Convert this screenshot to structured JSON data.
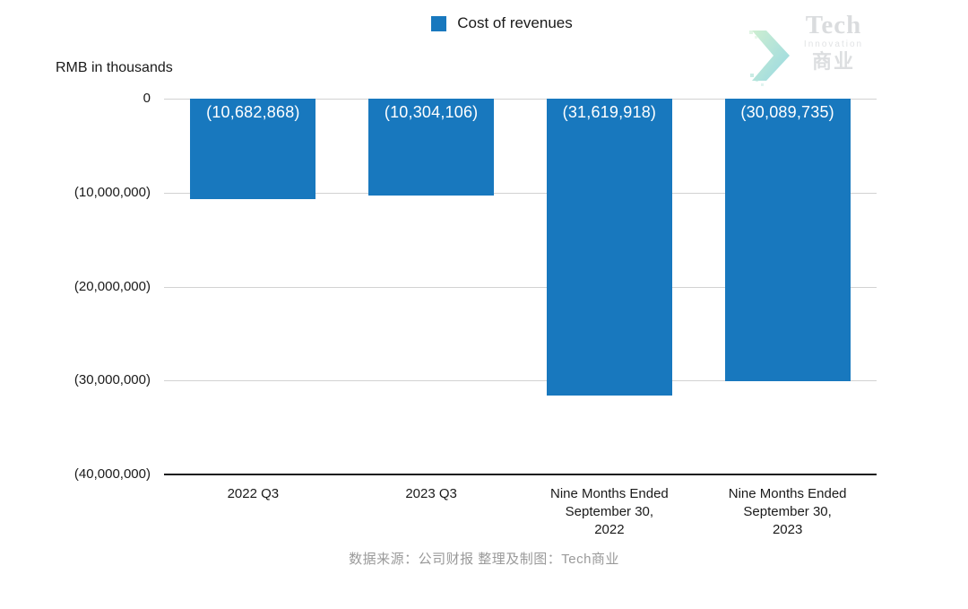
{
  "legend": {
    "label": "Cost of revenues"
  },
  "y_axis_title": "RMB in thousands",
  "logo": {
    "line1": "Tech",
    "line2": "Innovation",
    "line3": "商业"
  },
  "footer": "数据来源：公司财报 整理及制图：Tech商业",
  "colors": {
    "bar": "#1878be",
    "grid": "#d2d2d2",
    "axis": "#1c1c1e",
    "bar_label_text": "#ffffff",
    "footer_text": "#9a9a9a",
    "logo_gray": "#c6c9cc",
    "logo_chevron_start": "#9fdfa5",
    "logo_chevron_end": "#35b5c9"
  },
  "chart_data": {
    "type": "bar",
    "title": "Cost of revenues",
    "xlabel": "",
    "ylabel": "RMB in thousands",
    "legend_entries": [
      "Cost of revenues"
    ],
    "legend_position": "top-center",
    "grid": true,
    "categories": [
      "2022 Q3",
      "2023 Q3",
      "Nine Months Ended\nSeptember 30,\n2022",
      "Nine Months Ended\nSeptember 30,\n2023"
    ],
    "values": [
      -10682868,
      -10304106,
      -31619918,
      -30089735
    ],
    "value_labels": [
      "(10,682,868)",
      "(10,304,106)",
      "(31,619,918)",
      "(30,089,735)"
    ],
    "ylim": [
      -40000000,
      0
    ],
    "y_ticks": [
      0,
      -10000000,
      -20000000,
      -30000000,
      -40000000
    ],
    "y_tick_labels": [
      "0",
      "(10,000,000)",
      "(20,000,000)",
      "(30,000,000)",
      "(40,000,000)"
    ],
    "bar_color": "#1878be"
  }
}
